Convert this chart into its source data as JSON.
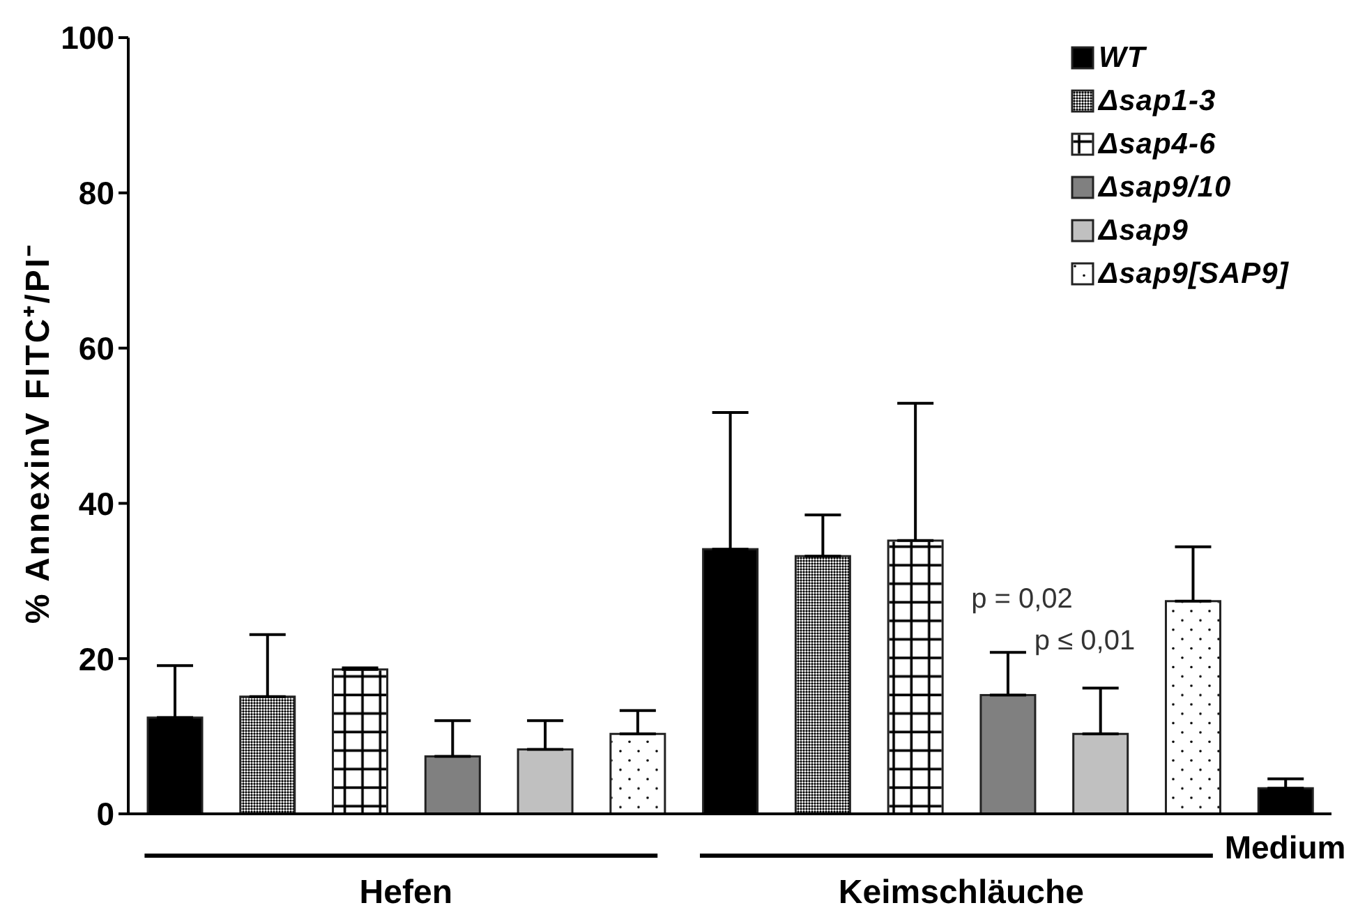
{
  "chart_data": {
    "type": "bar",
    "categories": [
      "Hefen",
      "Keimschläuche",
      "Medium"
    ],
    "ylabel": "% AnnexinV FITC⁺/PI⁻",
    "ylim": [
      0,
      100
    ],
    "yticks": [
      0,
      20,
      40,
      60,
      80,
      100
    ],
    "legend": "top right",
    "annotations": [
      "p = 0,02",
      "p ≤ 0,01"
    ],
    "series": [
      {
        "name": "WT",
        "color": "#000000",
        "values": [
          12.4,
          34.1,
          null
        ],
        "errors": [
          [
            12.4,
            19.1
          ],
          [
            34.1,
            51.7
          ],
          null
        ]
      },
      {
        "name": "Δsap1-3",
        "color": "#7a7a7a",
        "values": [
          15.1,
          33.2,
          null
        ],
        "errors": [
          [
            15.1,
            23.1
          ],
          [
            33.2,
            38.5
          ],
          null
        ]
      },
      {
        "name": "Δsap4-6",
        "color": "#ffffff",
        "values": [
          18.6,
          35.2,
          null
        ],
        "errors": [
          [
            18.6,
            18.8
          ],
          [
            35.2,
            52.9
          ],
          null
        ]
      },
      {
        "name": "Δsap9/10",
        "color": "#808080",
        "values": [
          7.4,
          15.3,
          null
        ],
        "errors": [
          [
            7.4,
            12.0
          ],
          [
            15.3,
            20.8
          ],
          null
        ]
      },
      {
        "name": "Δsap9",
        "color": "#c0c0c0",
        "values": [
          8.3,
          10.3,
          null
        ],
        "errors": [
          [
            8.3,
            12.0
          ],
          [
            10.3,
            16.2
          ],
          null
        ]
      },
      {
        "name": "Δsap9[SAP9]",
        "color": "#ffffff",
        "values": [
          10.3,
          27.4,
          null
        ],
        "errors": [
          [
            10.3,
            13.3
          ],
          [
            27.4,
            34.4
          ],
          null
        ]
      },
      {
        "color": "#000000",
        "values": [
          null,
          null,
          3.3
        ],
        "errors": [
          null,
          null,
          [
            3.3,
            4.5
          ]
        ]
      }
    ]
  }
}
